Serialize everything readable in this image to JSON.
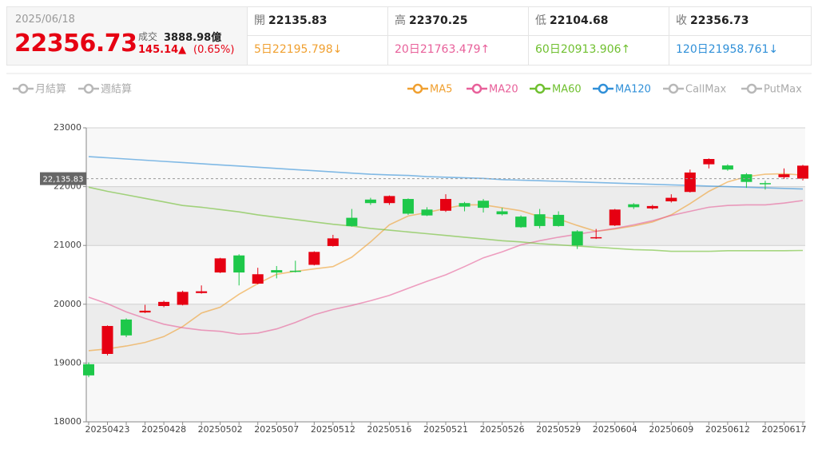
{
  "header": {
    "date": "2025/06/18",
    "price": "22356.73",
    "volume_label": "成交",
    "volume": "3888.98億",
    "change": "145.14▲",
    "change_pct": "(0.65%)"
  },
  "stats": [
    {
      "label": "開",
      "value": "22135.83"
    },
    {
      "label": "高",
      "value": "22370.25"
    },
    {
      "label": "低",
      "value": "22104.68"
    },
    {
      "label": "收",
      "value": "22356.73"
    }
  ],
  "ma_stats": [
    {
      "text": "5日22195.798↓",
      "color": "#f0a030"
    },
    {
      "text": "20日21763.479↑",
      "color": "#e8609a"
    },
    {
      "text": "60日20913.906↑",
      "color": "#70c030"
    },
    {
      "text": "120日21958.761↓",
      "color": "#3090d8"
    }
  ],
  "chart_data": {
    "type": "candlestick",
    "categories": [
      null,
      "20250423",
      null,
      null,
      "20250428",
      null,
      null,
      "20250502",
      null,
      null,
      "20250507",
      null,
      null,
      "20250512",
      null,
      null,
      "20250516",
      null,
      null,
      "20250521",
      null,
      null,
      "20250526",
      null,
      null,
      "20250529",
      null,
      null,
      "20250604",
      null,
      null,
      "20250609",
      null,
      null,
      "20250612",
      null,
      null,
      "20250617",
      null
    ],
    "open": [
      18980,
      19155,
      19740,
      19860,
      19970,
      19990,
      20190,
      20540,
      20830,
      20350,
      20580,
      20570,
      20670,
      20990,
      21470,
      21780,
      21720,
      21790,
      21610,
      21590,
      21720,
      21760,
      21580,
      21490,
      21530,
      21520,
      21240,
      21130,
      21340,
      21700,
      21630,
      21750,
      21910,
      22380,
      22360,
      22210,
      22060,
      22160,
      22135.83
    ],
    "high": [
      19010,
      19640,
      19760,
      19990,
      20060,
      20230,
      20320,
      20790,
      20850,
      20620,
      20650,
      20740,
      20900,
      21180,
      21620,
      21810,
      21850,
      21800,
      21650,
      21870,
      21740,
      21790,
      21640,
      21510,
      21620,
      21580,
      21260,
      21280,
      21620,
      21720,
      21690,
      21870,
      22290,
      22480,
      22380,
      22230,
      22100,
      22310,
      22370.25
    ],
    "low": [
      18760,
      19130,
      19440,
      19850,
      19950,
      19980,
      20180,
      20530,
      20320,
      20340,
      20440,
      20540,
      20660,
      20980,
      21320,
      21690,
      21690,
      21520,
      21500,
      21570,
      21580,
      21560,
      21510,
      21300,
      21290,
      21320,
      20940,
      21110,
      21330,
      21620,
      21610,
      21730,
      21900,
      22310,
      22270,
      21980,
      21950,
      22130,
      22104.68
    ],
    "close": [
      18790,
      19630,
      19470,
      19890,
      20040,
      20210,
      20220,
      20780,
      20540,
      20510,
      20540,
      20550,
      20890,
      21120,
      21330,
      21720,
      21840,
      21540,
      21510,
      21790,
      21660,
      21640,
      21530,
      21310,
      21330,
      21330,
      21000,
      21140,
      21610,
      21650,
      21670,
      21810,
      22240,
      22470,
      22290,
      22080,
      22040,
      22210,
      22356.73
    ],
    "up_color": "#e60012",
    "down_color": "#1ec84a",
    "series": [
      {
        "name": "MA5",
        "color": "#f0a030",
        "values": [
          19210,
          19240,
          19290,
          19350,
          19450,
          19620,
          19850,
          19950,
          20170,
          20350,
          20510,
          20560,
          20600,
          20640,
          20800,
          21060,
          21350,
          21500,
          21560,
          21630,
          21690,
          21690,
          21640,
          21590,
          21490,
          21450,
          21340,
          21240,
          21280,
          21330,
          21400,
          21520,
          21710,
          21920,
          22080,
          22170,
          22210,
          22220,
          22195.798
        ]
      },
      {
        "name": "MA20",
        "color": "#e8609a",
        "values": [
          20120,
          20010,
          19870,
          19760,
          19660,
          19600,
          19560,
          19540,
          19490,
          19510,
          19580,
          19690,
          19820,
          19910,
          19980,
          20060,
          20150,
          20270,
          20390,
          20500,
          20640,
          20790,
          20890,
          21010,
          21080,
          21140,
          21190,
          21240,
          21290,
          21350,
          21420,
          21510,
          21580,
          21650,
          21680,
          21690,
          21690,
          21720,
          21763.479
        ]
      },
      {
        "name": "MA60",
        "color": "#70c030",
        "values": [
          21990,
          21920,
          21860,
          21800,
          21740,
          21680,
          21650,
          21610,
          21570,
          21520,
          21480,
          21440,
          21400,
          21360,
          21330,
          21290,
          21260,
          21230,
          21200,
          21170,
          21140,
          21110,
          21080,
          21060,
          21030,
          21010,
          20990,
          20970,
          20950,
          20930,
          20920,
          20900,
          20900,
          20900,
          20910,
          20910,
          20910,
          20910,
          20913.906
        ]
      },
      {
        "name": "MA120",
        "color": "#3090d8",
        "values": [
          22510,
          22490,
          22470,
          22450,
          22430,
          22410,
          22390,
          22370,
          22350,
          22330,
          22310,
          22290,
          22270,
          22250,
          22230,
          22210,
          22200,
          22190,
          22170,
          22160,
          22150,
          22140,
          22120,
          22110,
          22100,
          22090,
          22080,
          22070,
          22060,
          22050,
          22040,
          22030,
          22020,
          22010,
          22000,
          21990,
          21980,
          21970,
          21958.761
        ]
      }
    ],
    "markers": [
      {
        "name": "月結算",
        "color": "#b8b8b8"
      },
      {
        "name": "週結算",
        "color": "#b8b8b8"
      },
      {
        "name": "CallMax",
        "color": "#b8b8b8"
      },
      {
        "name": "PutMax",
        "color": "#b8b8b8"
      }
    ],
    "reference": {
      "value": 22135.83,
      "label": "22,135.83"
    },
    "ylim": [
      18000,
      23000
    ],
    "yticks": [
      18000,
      19000,
      20000,
      21000,
      22000,
      23000
    ],
    "grid": true
  }
}
